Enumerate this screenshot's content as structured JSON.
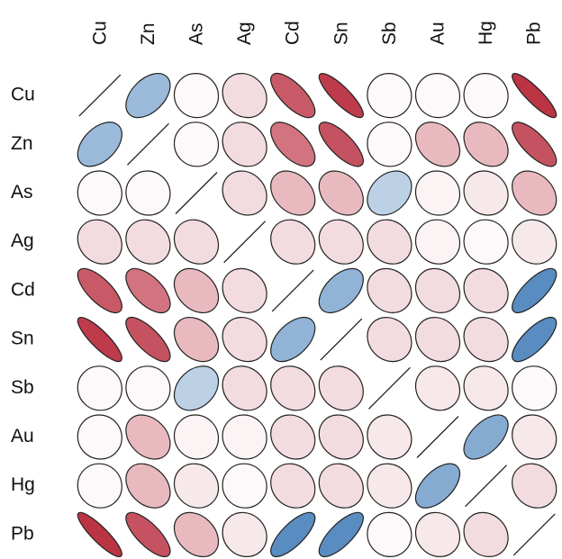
{
  "chart_data": {
    "type": "heatmap",
    "subtype": "correlation-ellipse-matrix",
    "title": "",
    "xlabel": "",
    "ylabel": "",
    "variables": [
      "Cu",
      "Zn",
      "As",
      "Ag",
      "Cd",
      "Sn",
      "Sb",
      "Au",
      "Hg",
      "Pb"
    ],
    "value_range": [
      -1,
      1
    ],
    "color_scale": {
      "negative": "#b2182b",
      "neutral": "#ffffff",
      "positive": "#2166ac"
    },
    "matrix": [
      [
        1.0,
        0.45,
        -0.03,
        -0.15,
        -0.72,
        -0.85,
        -0.03,
        -0.03,
        -0.03,
        -0.88
      ],
      [
        0.45,
        1.0,
        -0.03,
        -0.15,
        -0.6,
        -0.75,
        -0.03,
        -0.3,
        -0.3,
        -0.75
      ],
      [
        -0.03,
        -0.03,
        1.0,
        -0.15,
        -0.3,
        -0.3,
        0.3,
        -0.05,
        -0.1,
        -0.3
      ],
      [
        -0.15,
        -0.15,
        -0.15,
        1.0,
        -0.15,
        -0.15,
        -0.15,
        -0.05,
        -0.03,
        -0.1
      ],
      [
        -0.72,
        -0.6,
        -0.3,
        -0.15,
        1.0,
        0.5,
        -0.15,
        -0.15,
        -0.15,
        0.75
      ],
      [
        -0.85,
        -0.75,
        -0.3,
        -0.15,
        0.5,
        1.0,
        -0.15,
        -0.15,
        -0.15,
        0.75
      ],
      [
        -0.03,
        -0.03,
        0.3,
        -0.15,
        -0.15,
        -0.15,
        1.0,
        -0.1,
        -0.1,
        -0.03
      ],
      [
        -0.03,
        -0.3,
        -0.05,
        -0.05,
        -0.15,
        -0.15,
        -0.1,
        1.0,
        0.55,
        -0.1
      ],
      [
        -0.03,
        -0.3,
        -0.1,
        -0.03,
        -0.15,
        -0.15,
        -0.1,
        0.55,
        1.0,
        -0.15
      ],
      [
        -0.88,
        -0.75,
        -0.3,
        -0.1,
        0.75,
        0.75,
        -0.03,
        -0.1,
        -0.15,
        1.0
      ]
    ],
    "diagonal_style": "line",
    "grid": false,
    "legend": "none"
  }
}
